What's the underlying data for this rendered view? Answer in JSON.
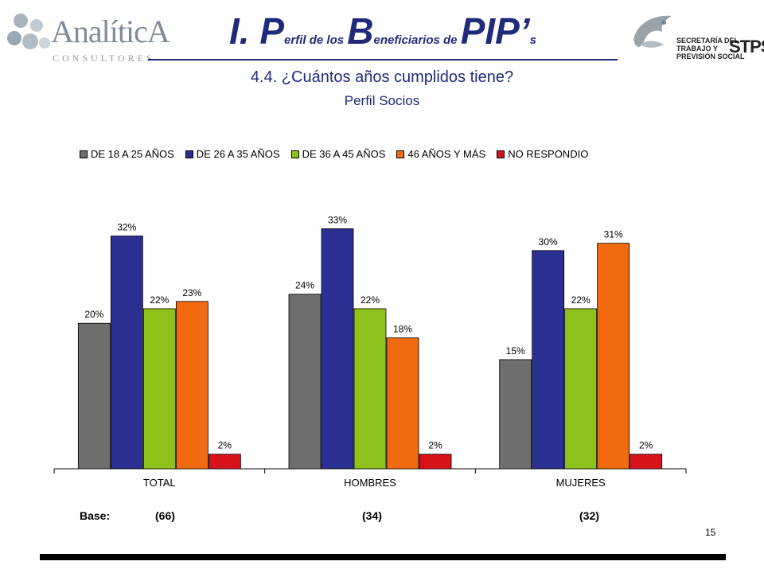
{
  "header": {
    "logo_left": {
      "word": "AnalíticA",
      "sub": "CONSULTORES"
    },
    "title": {
      "p1": "I. P",
      "p2": "erfil de los ",
      "p3": "B",
      "p4": "eneficiarios de ",
      "p5": "PIP’",
      "p6": "s"
    },
    "logo_right": {
      "line1": "SECRETARÍA DEL",
      "line2": "TRABAJO Y",
      "line3": "PREVISIÓN SOCIAL",
      "acronym": "STPS"
    }
  },
  "subtitle": "4.4.  ¿Cuántos años cumplidos tiene?",
  "subtitle2": "Perfil Socios",
  "colors": {
    "title": "#1f2b7a",
    "gray": "#6e6e6e",
    "blue": "#2b2f91",
    "green": "#8ec21a",
    "orange": "#f26a10",
    "red": "#d8121b"
  },
  "chart_data": {
    "type": "bar",
    "categories": [
      "TOTAL",
      "HOMBRES",
      "MUJERES"
    ],
    "series": [
      {
        "name": "DE 18 A 25 AÑOS",
        "values": [
          20,
          24,
          15
        ],
        "color": "#6e6e6e"
      },
      {
        "name": "DE 26 A 35 AÑOS",
        "values": [
          32,
          33,
          30
        ],
        "color": "#2b2f91"
      },
      {
        "name": "DE 36 A 45 AÑOS",
        "values": [
          22,
          22,
          22
        ],
        "color": "#8ec21a"
      },
      {
        "name": "46 AÑOS Y MÁS",
        "values": [
          23,
          18,
          31
        ],
        "color": "#f26a10"
      },
      {
        "name": "NO RESPONDIO",
        "values": [
          2,
          2,
          2
        ],
        "color": "#d8121b"
      }
    ],
    "value_suffix": "%",
    "ylim": [
      0,
      35
    ],
    "legend_position": "top",
    "grid": false
  },
  "base": {
    "label": "Base:",
    "values": [
      "(66)",
      "(34)",
      "(32)"
    ]
  },
  "page_number": "15"
}
